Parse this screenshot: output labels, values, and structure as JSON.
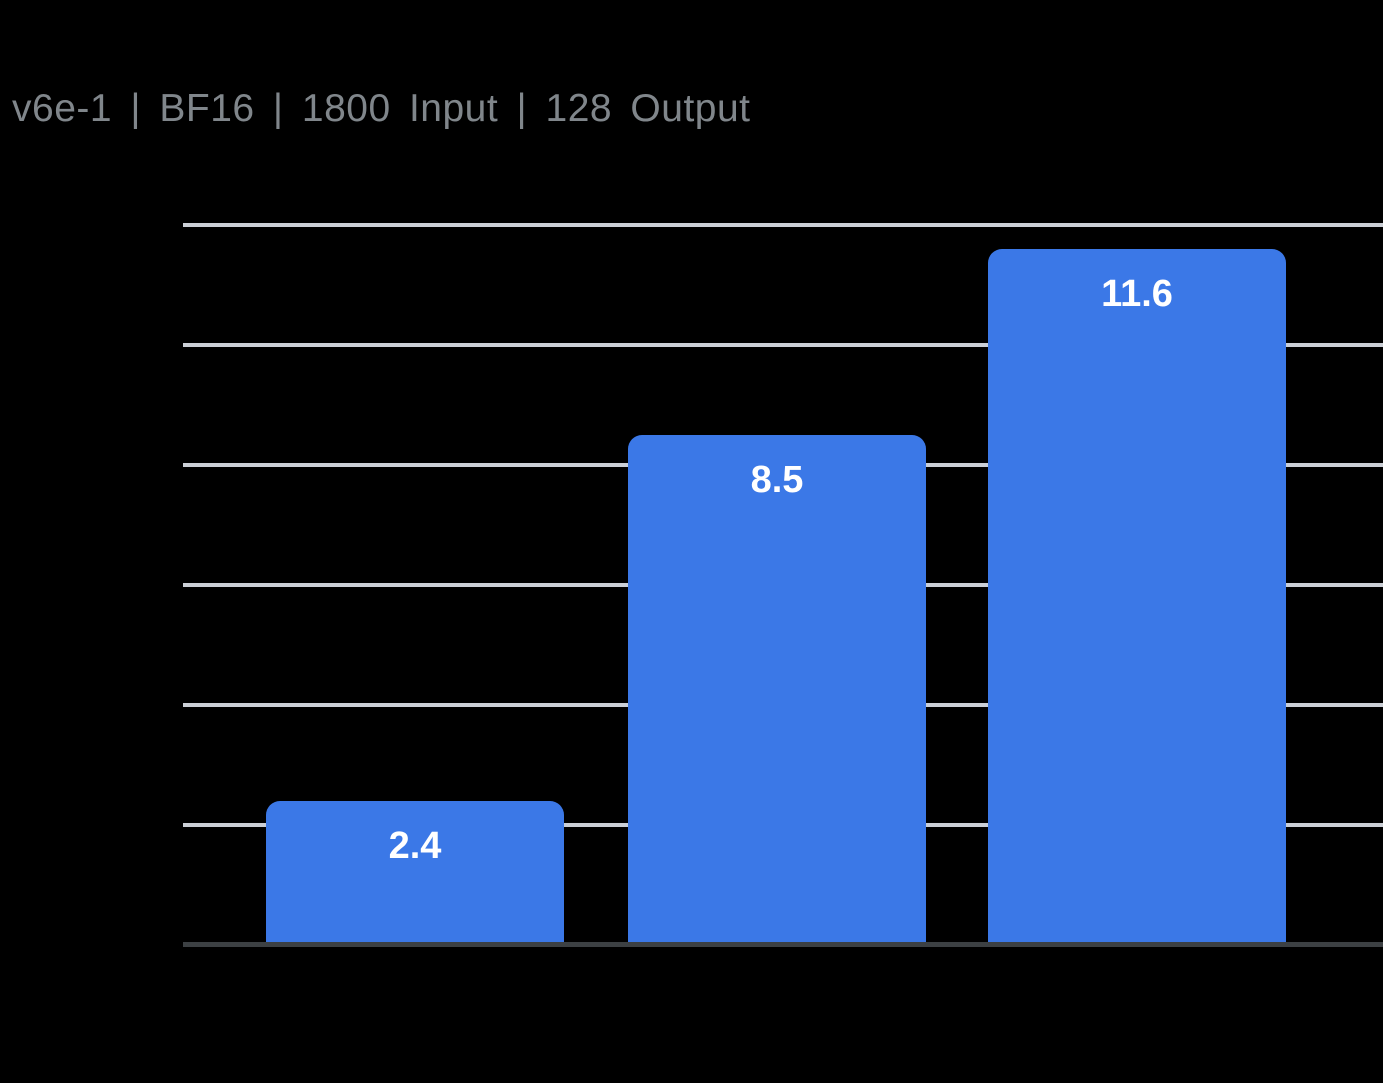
{
  "header": {
    "title": "v6e-1 | BF16 | 1800 Input | 128 Output",
    "title_color": "#80868B"
  },
  "chart_data": {
    "type": "bar",
    "title": "v6e-1 | BF16 | 1800 Input | 128 Output",
    "values": [
      2.4,
      8.5,
      11.6
    ],
    "data_labels": [
      "2.4",
      "8.5",
      "11.6"
    ],
    "categories": [
      "",
      "",
      ""
    ],
    "xlabel": "",
    "ylabel": "",
    "ylim": [
      0,
      12
    ],
    "grid_step": 2,
    "grid": true,
    "legend": false,
    "x_tick_labels_visible": false,
    "y_tick_labels_visible": false,
    "colors": {
      "background": "#000000",
      "bar": "#3B78E7",
      "data_label": "#FFFFFF",
      "gridline": "#CBCFD6",
      "axis_line": "#3C4043",
      "title": "#80868B"
    }
  }
}
